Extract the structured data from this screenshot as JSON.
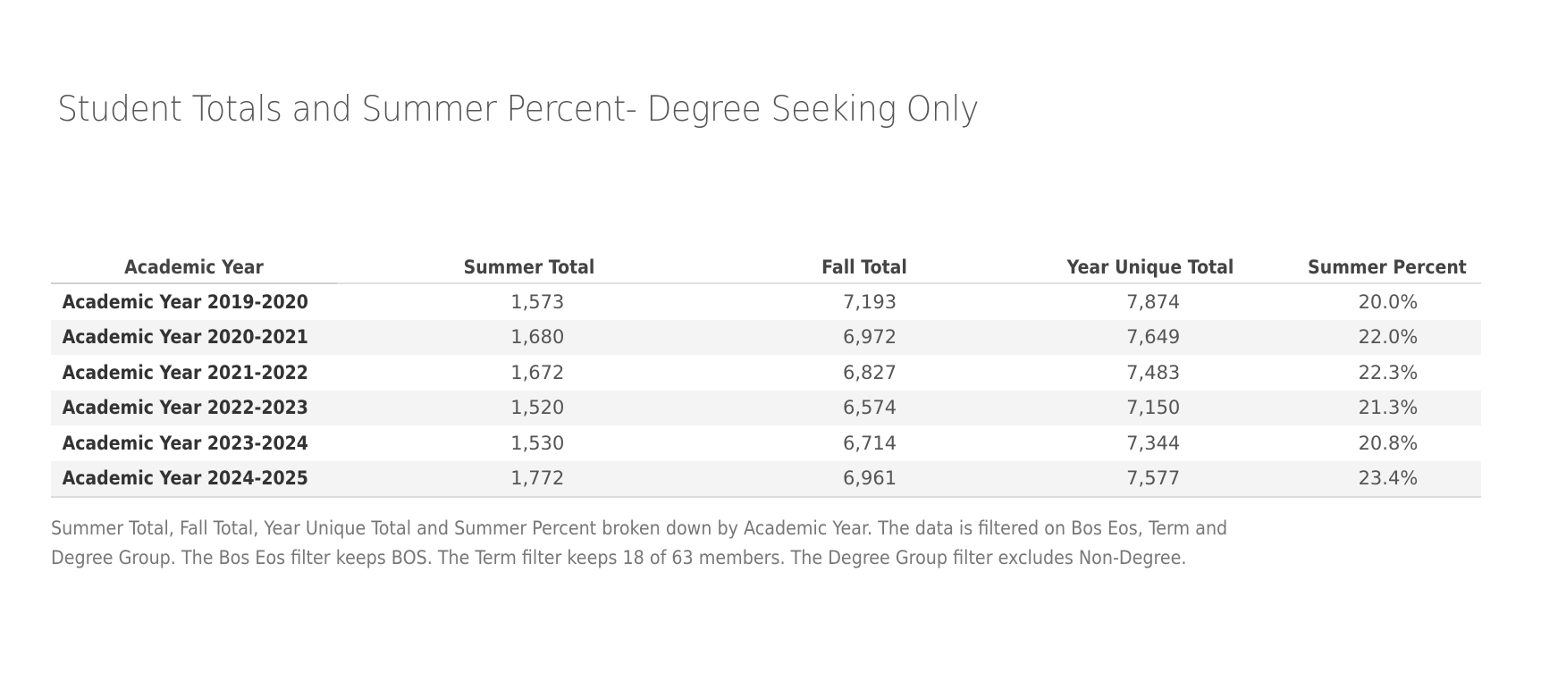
{
  "title": "Student Totals and Summer Percent- Degree Seeking Only",
  "table": {
    "columns": [
      "Academic Year",
      "Summer Total",
      "Fall Total",
      "Year Unique Total",
      "Summer Percent"
    ],
    "rows": [
      {
        "year": "Academic Year 2019-2020",
        "summer_total": "1,573",
        "fall_total": "7,193",
        "year_unique_total": "7,874",
        "summer_percent": "20.0%"
      },
      {
        "year": "Academic Year 2020-2021",
        "summer_total": "1,680",
        "fall_total": "6,972",
        "year_unique_total": "7,649",
        "summer_percent": "22.0%"
      },
      {
        "year": "Academic Year 2021-2022",
        "summer_total": "1,672",
        "fall_total": "6,827",
        "year_unique_total": "7,483",
        "summer_percent": "22.3%"
      },
      {
        "year": "Academic Year 2022-2023",
        "summer_total": "1,520",
        "fall_total": "6,574",
        "year_unique_total": "7,150",
        "summer_percent": "21.3%"
      },
      {
        "year": "Academic Year 2023-2024",
        "summer_total": "1,530",
        "fall_total": "6,714",
        "year_unique_total": "7,344",
        "summer_percent": "20.8%"
      },
      {
        "year": "Academic Year 2024-2025",
        "summer_total": "1,772",
        "fall_total": "6,961",
        "year_unique_total": "7,577",
        "summer_percent": "23.4%"
      }
    ]
  },
  "caption": {
    "line1": "Summer Total, Fall Total, Year Unique Total  and Summer Percent broken down by Academic Year. The data is filtered on Bos Eos, Term and",
    "line2": "Degree Group. The Bos Eos filter keeps BOS. The Term filter keeps 18 of 63 members. The Degree Group filter excludes Non-Degree."
  },
  "colors": {
    "band": "#f4f4f4",
    "title": "#555555",
    "caption": "#777777"
  }
}
